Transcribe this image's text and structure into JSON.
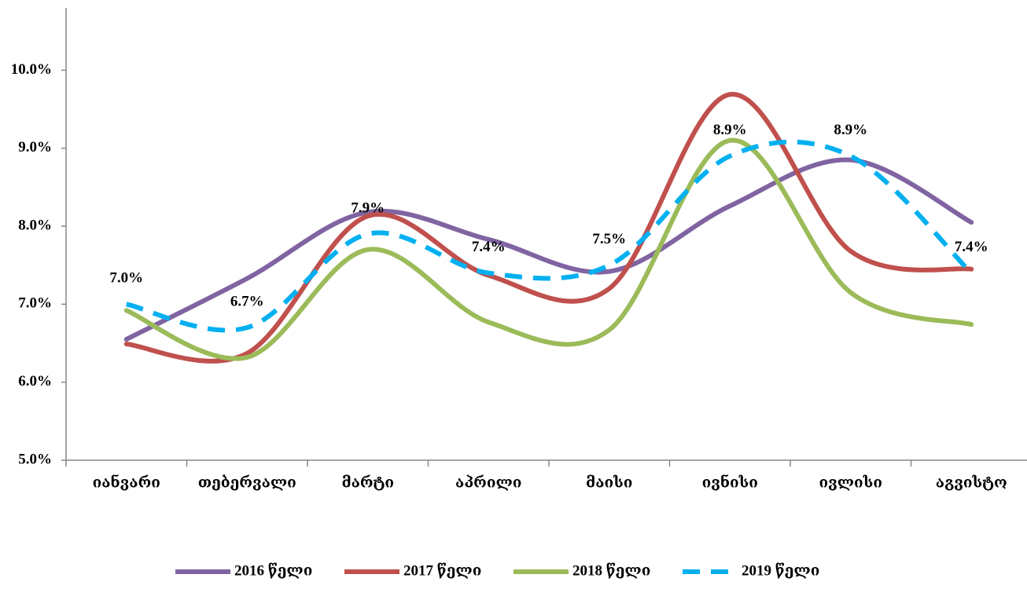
{
  "chart_data": {
    "type": "line",
    "categories": [
      "იანვარი",
      "თებერვალი",
      "მარტი",
      "აპრილი",
      "მაისი",
      "ივნისი",
      "ივლისი",
      "აგვისტო"
    ],
    "series": [
      {
        "name": "2016 წელი",
        "color": "#8064a2",
        "values": [
          6.55,
          7.33,
          8.18,
          7.83,
          7.42,
          8.26,
          8.85,
          8.05
        ]
      },
      {
        "name": "2017 წელი",
        "color": "#c0504d",
        "values": [
          6.49,
          6.37,
          8.13,
          7.37,
          7.2,
          9.69,
          7.68,
          7.45
        ]
      },
      {
        "name": "2018 წელი",
        "color": "#9bbb59",
        "values": [
          6.92,
          6.32,
          7.7,
          6.77,
          6.67,
          9.1,
          7.15,
          6.74
        ]
      },
      {
        "name": "2019 წელი",
        "color": "#00b0f0",
        "dashed": true,
        "values": [
          7.0,
          6.7,
          7.9,
          7.4,
          7.5,
          8.9,
          8.9,
          7.4
        ],
        "value_labels": [
          "7.0%",
          "6.7%",
          "7.9%",
          "7.4%",
          "7.5%",
          "8.9%",
          "8.9%",
          "7.4%"
        ]
      }
    ],
    "ylim": [
      5,
      10.8
    ],
    "yticks": [
      {
        "value": 5,
        "label": "5.0%"
      },
      {
        "value": 6,
        "label": "6.0%"
      },
      {
        "value": 7,
        "label": "7.0%"
      },
      {
        "value": 8,
        "label": "8.0%"
      },
      {
        "value": 9,
        "label": "9.0%"
      },
      {
        "value": 10,
        "label": "10.0%"
      }
    ],
    "legend": "bottom"
  }
}
